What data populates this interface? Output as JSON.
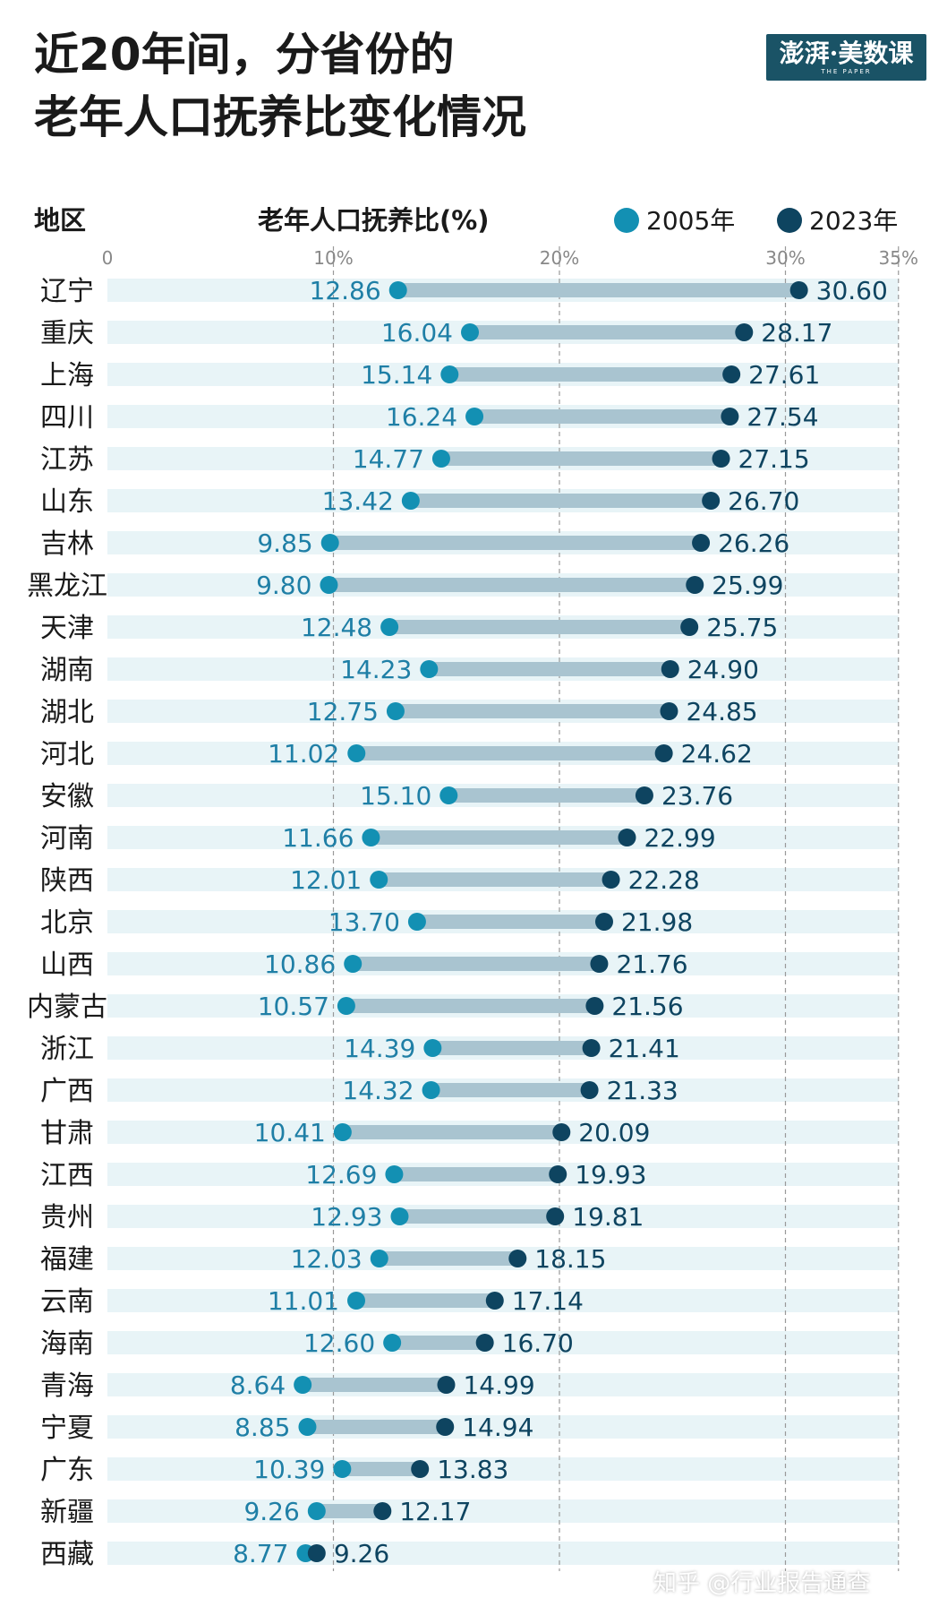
{
  "header": {
    "title_line1": "近20年间，分省份的",
    "title_line2": "老年人口抚养比变化情况",
    "logo_text": "澎湃·美数课",
    "logo_sub": "THE PAPER"
  },
  "watermark": "知乎 @行业报告通查",
  "chart_data": {
    "type": "dumbbell",
    "category_label": "地区",
    "value_label": "老年人口抚养比(%)",
    "xlim": [
      0,
      35
    ],
    "ticks": [
      "0",
      "10%",
      "20%",
      "30%",
      "35%"
    ],
    "tick_values": [
      0,
      10,
      20,
      30,
      35
    ],
    "grid": true,
    "legend_position": "top-right",
    "series": [
      {
        "name": "2005年",
        "color": "#1390b3"
      },
      {
        "name": "2023年",
        "color": "#0e4460"
      }
    ],
    "categories": [
      "辽宁",
      "重庆",
      "上海",
      "四川",
      "江苏",
      "山东",
      "吉林",
      "黑龙江",
      "天津",
      "湖南",
      "湖北",
      "河北",
      "安徽",
      "河南",
      "陕西",
      "北京",
      "山西",
      "内蒙古",
      "浙江",
      "广西",
      "甘肃",
      "江西",
      "贵州",
      "福建",
      "云南",
      "海南",
      "青海",
      "宁夏",
      "广东",
      "新疆",
      "西藏"
    ],
    "values_2005": [
      "12.86",
      "16.04",
      "15.14",
      "16.24",
      "14.77",
      "13.42",
      "9.85",
      "9.80",
      "12.48",
      "14.23",
      "12.75",
      "11.02",
      "15.10",
      "11.66",
      "12.01",
      "13.70",
      "10.86",
      "10.57",
      "14.39",
      "14.32",
      "10.41",
      "12.69",
      "12.93",
      "12.03",
      "11.01",
      "12.60",
      "8.64",
      "8.85",
      "10.39",
      "9.26",
      "8.77"
    ],
    "values_2023": [
      "30.60",
      "28.17",
      "27.61",
      "27.54",
      "27.15",
      "26.70",
      "26.26",
      "25.99",
      "25.75",
      "24.90",
      "24.85",
      "24.62",
      "23.76",
      "22.99",
      "22.28",
      "21.98",
      "21.76",
      "21.56",
      "21.41",
      "21.33",
      "20.09",
      "19.93",
      "19.81",
      "18.15",
      "17.14",
      "16.70",
      "14.99",
      "14.94",
      "13.83",
      "12.17",
      "9.26"
    ]
  }
}
